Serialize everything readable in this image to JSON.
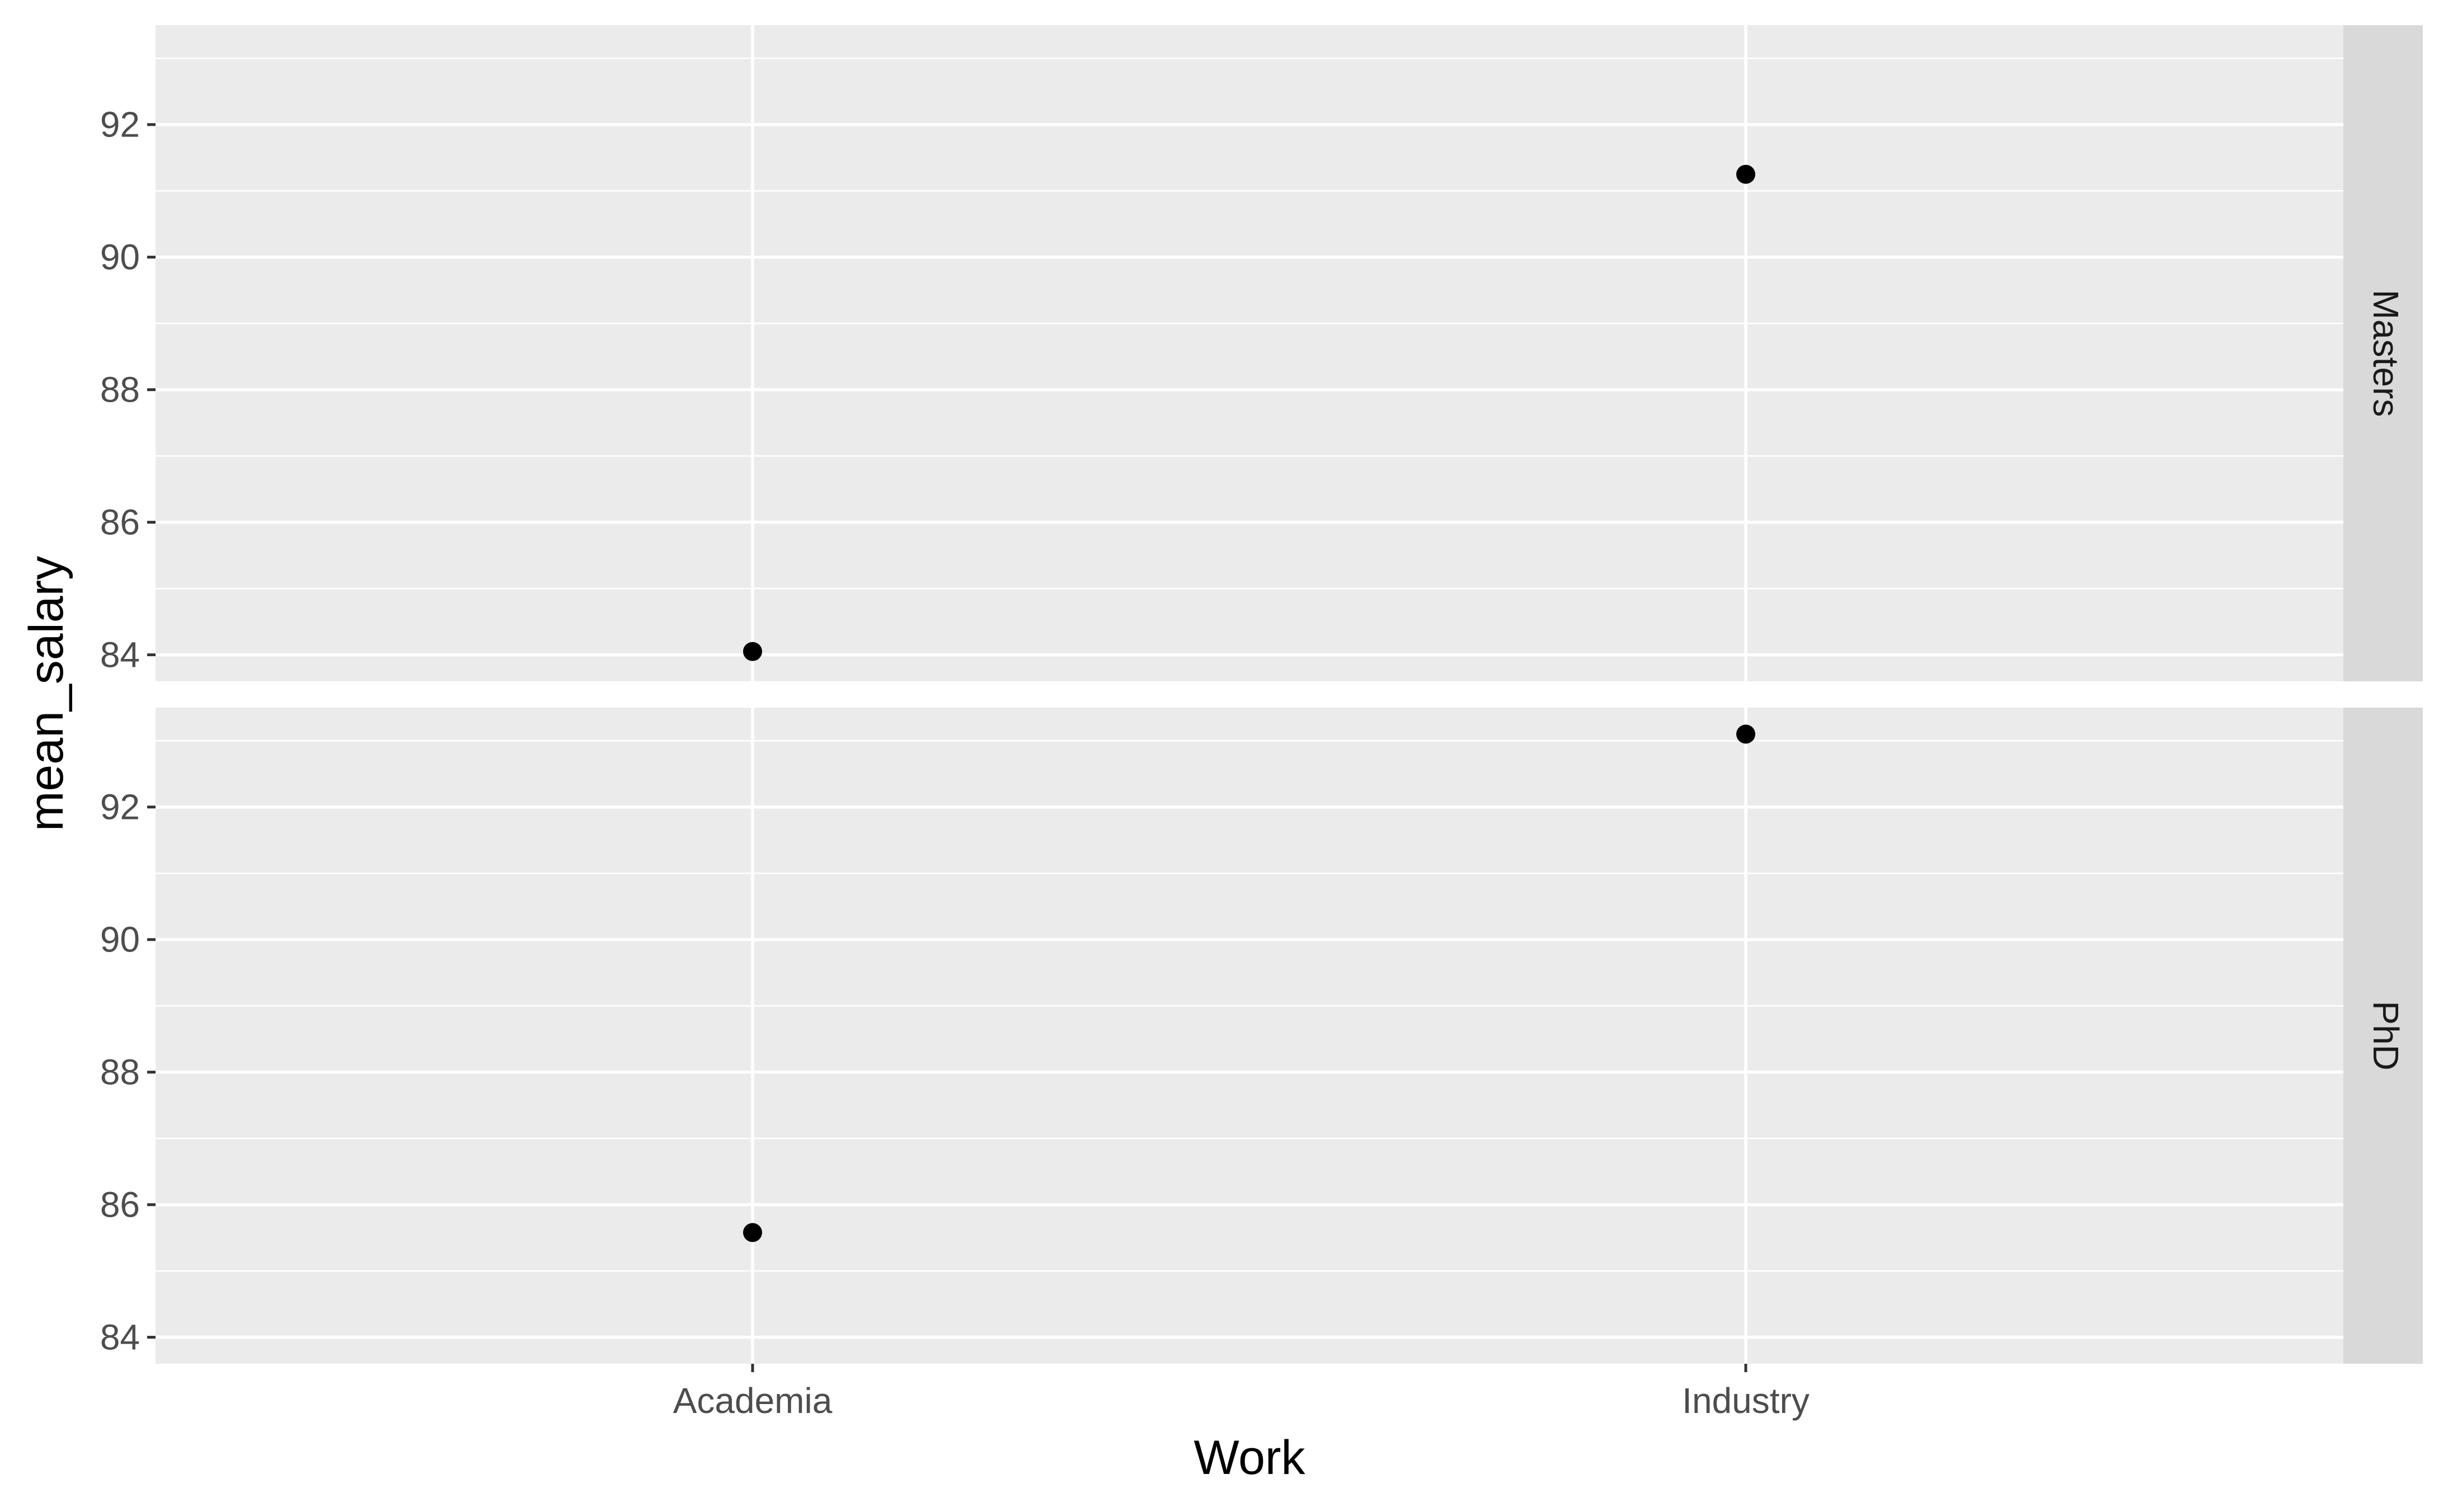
{
  "chart_data": {
    "type": "scatter",
    "xlabel": "Work",
    "ylabel": "mean_salary",
    "categories": [
      "Academia",
      "Industry"
    ],
    "ylim": [
      83.6,
      93.5
    ],
    "yticks": [
      84,
      86,
      88,
      90,
      92
    ],
    "facets": [
      {
        "label": "Masters",
        "points": [
          {
            "x": "Academia",
            "y": 84.05
          },
          {
            "x": "Industry",
            "y": 91.25
          }
        ]
      },
      {
        "label": "PhD",
        "points": [
          {
            "x": "Academia",
            "y": 85.58
          },
          {
            "x": "Industry",
            "y": 93.1
          }
        ]
      }
    ],
    "colors": {
      "panel": "#ebebeb",
      "grid": "#ffffff",
      "strip": "#d9d9d9",
      "point": "#000000",
      "tick": "#333333"
    },
    "grid": true
  }
}
